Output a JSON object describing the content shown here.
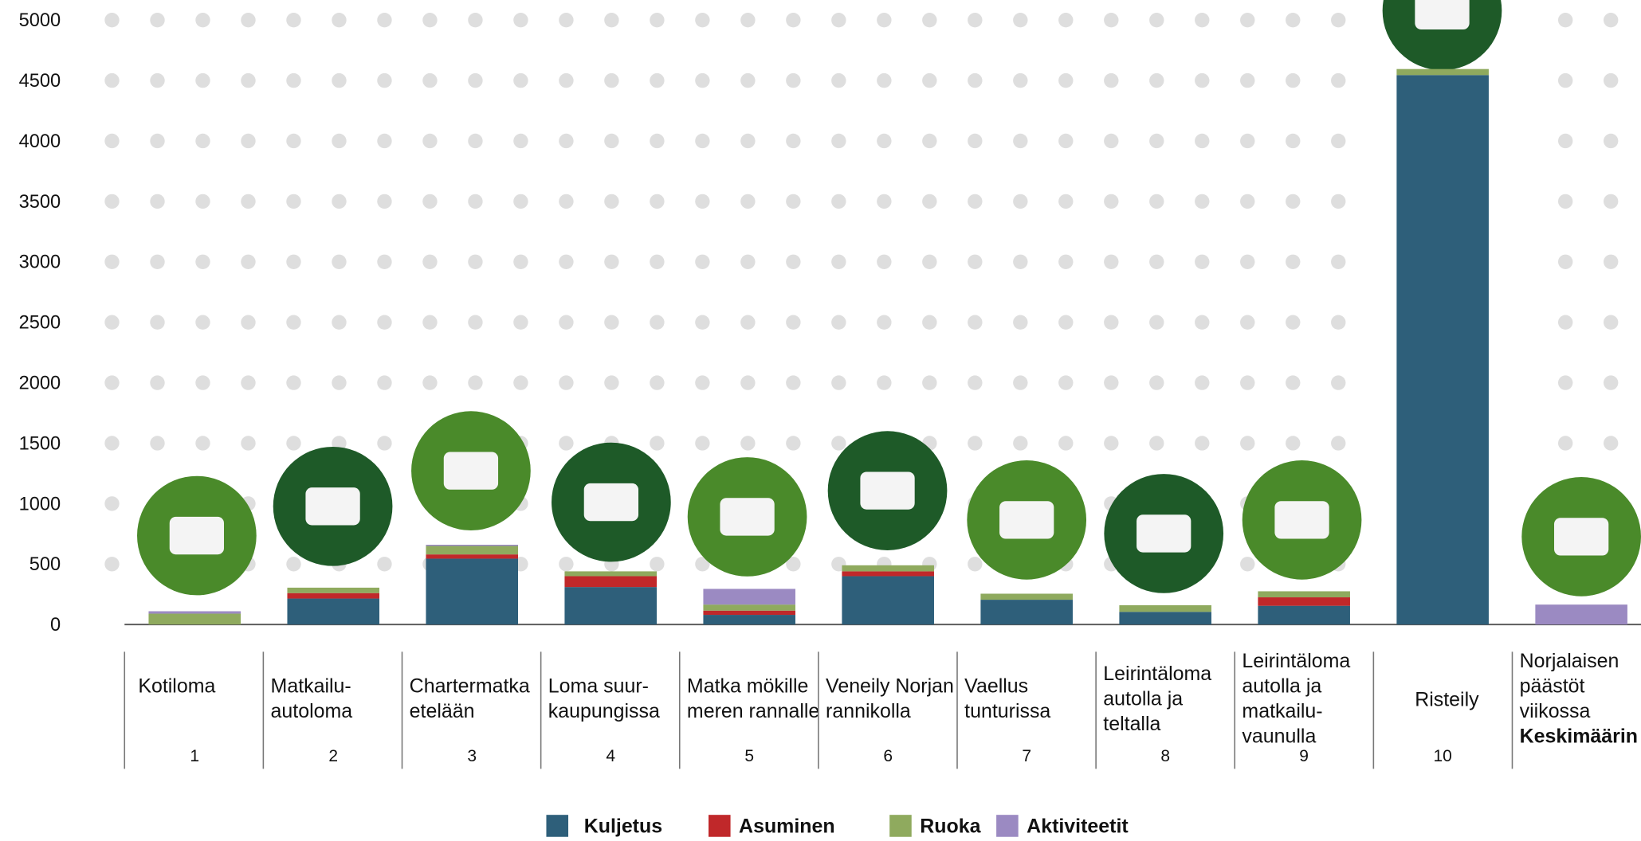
{
  "chart_data": {
    "type": "stacked-bar",
    "categories": [
      "Kotiloma",
      "Matkailu-\nautoloma",
      "Chartermatka\netelään",
      "Loma suur-\nkaupungissa",
      "Matka mökille\nmeren rannalle",
      "Veneily Norjan\nrannikolla",
      "Vaellus\ntunturissa",
      "Leirintäloma\nautolla ja\nteltalla",
      "Leirintäloma\nautolla ja\nmatkailu-\nvaunulla",
      "Risteily",
      "Norjalaisen\npäästöt\nviikossa\nKeskimäärin"
    ],
    "category_numbers": [
      "1",
      "2",
      "3",
      "4",
      "5",
      "6",
      "7",
      "8",
      "9",
      "10",
      null
    ],
    "series": [
      {
        "name": "Kuljetus",
        "color": "#2e5f7a",
        "values": [
          0,
          215,
          545,
          310,
          80,
          400,
          205,
          105,
          155,
          4545,
          0
        ]
      },
      {
        "name": "Asuminen",
        "color": "#c0282a",
        "values": [
          0,
          45,
          35,
          90,
          35,
          40,
          0,
          0,
          70,
          0,
          0
        ]
      },
      {
        "name": "Ruoka",
        "color": "#8faa5e",
        "values": [
          90,
          45,
          70,
          40,
          50,
          50,
          50,
          55,
          50,
          50,
          0
        ]
      },
      {
        "name": "Aktiviteetit",
        "color": "#9b8ac2",
        "values": [
          20,
          0,
          10,
          0,
          130,
          0,
          0,
          0,
          0,
          0,
          165
        ]
      }
    ],
    "ylim": [
      0,
      5000
    ],
    "yticks": [
      0,
      500,
      1000,
      1500,
      2000,
      2500,
      3000,
      3500,
      4000,
      4500,
      5000
    ]
  }
}
